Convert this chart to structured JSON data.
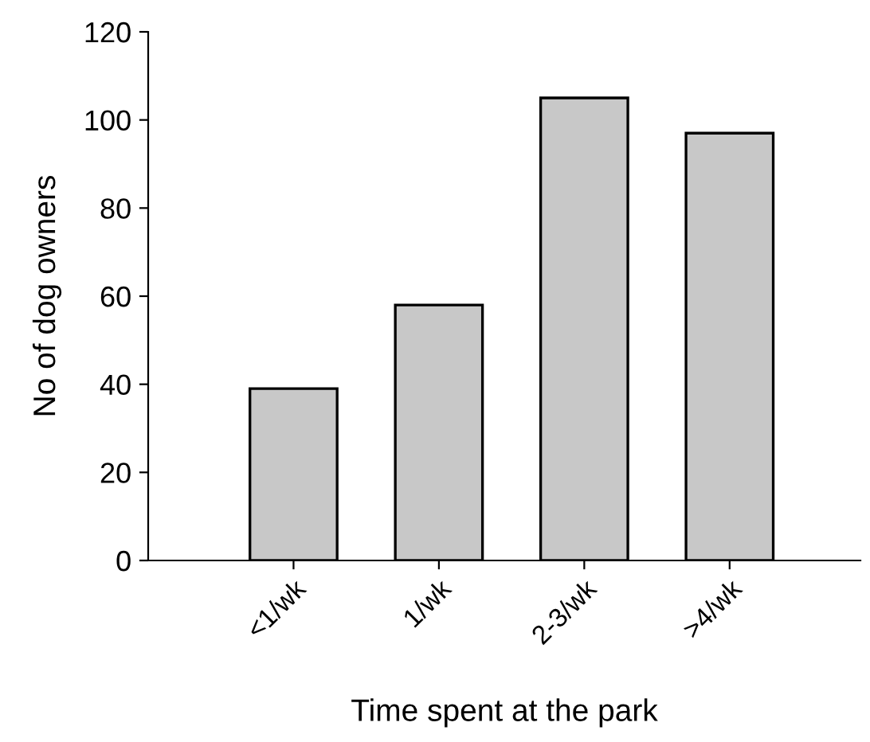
{
  "chart_data": {
    "type": "bar",
    "xlabel": "Time spent at the park",
    "ylabel": "No of dog owners",
    "categories": [
      "<1/wk",
      "1/wk",
      "2-3/wk",
      ">4/wk"
    ],
    "values": [
      39,
      58,
      105,
      97
    ],
    "color": "#c8c8c8",
    "ylim": [
      0,
      120
    ],
    "yticks": [
      0,
      20,
      40,
      60,
      80,
      100,
      120
    ],
    "grid": false
  }
}
